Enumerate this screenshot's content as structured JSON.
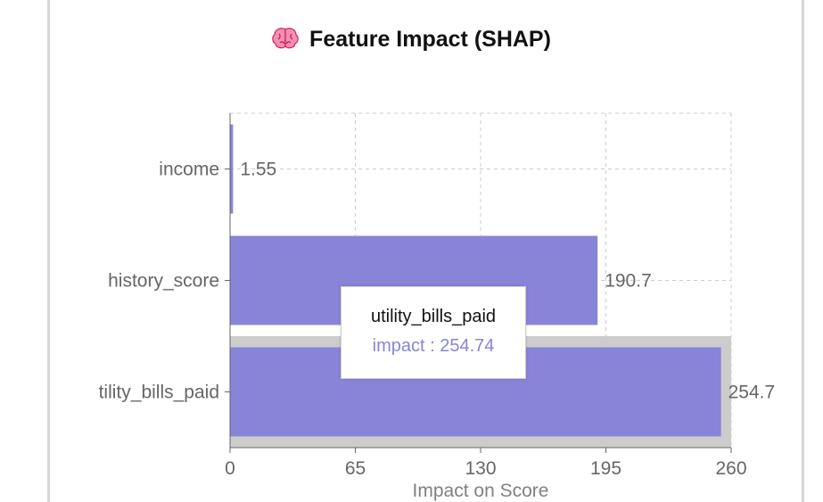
{
  "title": {
    "text": "Feature Impact (SHAP)",
    "icon": "brain-icon"
  },
  "colors": {
    "bar": "#8884d8",
    "highlight": "#cccccc",
    "grid": "#cccccc",
    "axis": "#666666",
    "label": "#666666"
  },
  "chart_data": {
    "type": "bar",
    "orientation": "horizontal",
    "categories": [
      "income",
      "history_score",
      "utility_bills_paid"
    ],
    "category_tick_labels": [
      "income",
      "history_score",
      "tility_bills_paid"
    ],
    "values": [
      1.55,
      190.7,
      254.74
    ],
    "value_labels": [
      "1.55",
      "190.7",
      "254.7"
    ],
    "xlabel": "Impact on Score",
    "ylabel": "",
    "xlim": [
      0,
      260
    ],
    "xticks": [
      0,
      65,
      130,
      195,
      260
    ],
    "grid": true,
    "highlighted_category": "utility_bills_paid"
  },
  "tooltip": {
    "name": "utility_bills_paid",
    "value_text": "impact : 254.74"
  }
}
